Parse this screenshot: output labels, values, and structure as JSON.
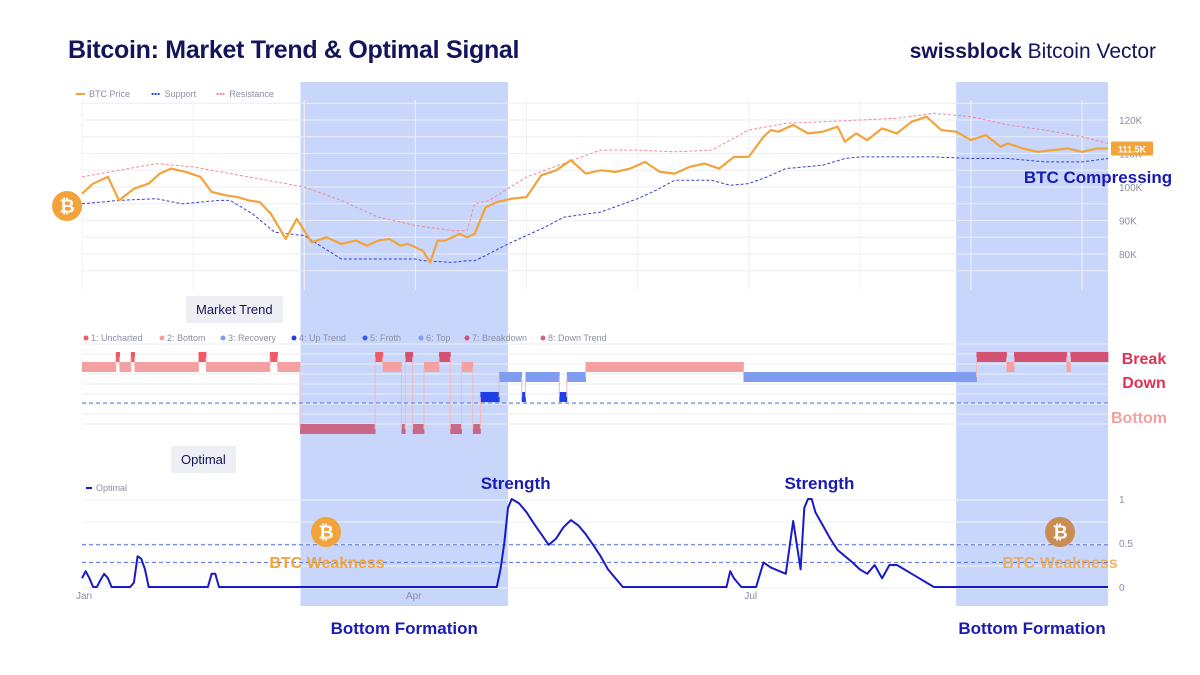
{
  "header": {
    "title": "Bitcoin: Market Trend & Optimal Signal",
    "brand_bold": "swissblock",
    "brand_rest": " Bitcoin Vector"
  },
  "colors": {
    "price": "#f2a33a",
    "support": "#3b43c8",
    "resistance": "#f08c96",
    "highlight": "#c3d1fb",
    "uncharted": "#ef5a66",
    "bottom": "#f5a0a0",
    "recovery": "#7f9cf0",
    "uptrend": "#1f3fe6",
    "breakdown": "#d35272",
    "downtrend": "#c96886",
    "optimal": "#1a1ac8",
    "dark_blue": "#1a1ab4"
  },
  "chart_data": [
    {
      "type": "line",
      "id": "price",
      "legend": [
        "BTC Price",
        "Support",
        "Resistance"
      ],
      "ylim": [
        70000,
        128000
      ],
      "y_ticks": [
        "120K",
        "110K",
        "100K",
        "90K",
        "80K"
      ],
      "y_tick_values": [
        120000,
        110000,
        100000,
        90000,
        80000
      ],
      "last_price_label": "111.5K",
      "series": [
        {
          "name": "BTC Price",
          "x": [
            0,
            3,
            7,
            10,
            14,
            18,
            21,
            24,
            28,
            32,
            35,
            39,
            42,
            45,
            48,
            51,
            55,
            58,
            62,
            66,
            70,
            74,
            77,
            80,
            83,
            86,
            88,
            90,
            92,
            94,
            96,
            98,
            100,
            102,
            104,
            106,
            109,
            112,
            116,
            120,
            124,
            128,
            132,
            136,
            140,
            144,
            148,
            152,
            156,
            160,
            164,
            168,
            172,
            176,
            180,
            184,
            186,
            188,
            192,
            196,
            200,
            204,
            206,
            209,
            212,
            216,
            220,
            224,
            228,
            232,
            236,
            240,
            244,
            248,
            250,
            254,
            258,
            262,
            266,
            270,
            274,
            277
          ],
          "values": [
            98000,
            101000,
            103000,
            96000,
            99500,
            101000,
            104000,
            105500,
            104500,
            103000,
            98500,
            97500,
            97000,
            96000,
            95500,
            92000,
            84500,
            90500,
            83500,
            85000,
            83000,
            84000,
            82500,
            84000,
            84500,
            82500,
            83000,
            82000,
            81000,
            77500,
            84000,
            84000,
            85000,
            86000,
            85000,
            86000,
            94000,
            95500,
            96500,
            97000,
            103500,
            105000,
            108000,
            104000,
            105000,
            104500,
            105500,
            107500,
            104500,
            104000,
            106000,
            107000,
            105500,
            109000,
            109000,
            115000,
            117000,
            116500,
            118500,
            116000,
            116500,
            118000,
            113500,
            116000,
            114000,
            117500,
            116000,
            119500,
            121000,
            117000,
            116500,
            114000,
            115500,
            112000,
            113000,
            111500,
            110500,
            111000,
            111500,
            110500,
            111500,
            111500
          ]
        },
        {
          "name": "Support",
          "x": [
            0,
            10,
            20,
            27,
            37,
            40,
            43,
            46,
            52,
            60,
            70,
            80,
            90,
            92,
            100,
            104,
            106,
            108,
            115,
            125,
            130,
            140,
            150,
            155,
            160,
            170,
            175,
            180,
            185,
            190,
            200,
            206,
            210,
            220,
            230,
            240,
            250,
            260,
            270,
            277
          ],
          "values": [
            95000,
            96000,
            96500,
            95000,
            96000,
            96000,
            94000,
            92000,
            86500,
            85500,
            78500,
            78500,
            78500,
            78000,
            77500,
            78000,
            78000,
            79000,
            83000,
            88000,
            91000,
            92500,
            96500,
            99000,
            102000,
            102000,
            100500,
            101000,
            103000,
            105500,
            106500,
            108500,
            109000,
            109000,
            109000,
            108500,
            108500,
            107500,
            107500,
            108500
          ]
        },
        {
          "name": "Resistance",
          "x": [
            0,
            10,
            20,
            30,
            40,
            50,
            60,
            70,
            80,
            90,
            100,
            104,
            106,
            110,
            120,
            130,
            140,
            150,
            160,
            170,
            180,
            190,
            200,
            210,
            220,
            230,
            240,
            250,
            260,
            270,
            277
          ],
          "values": [
            103000,
            105000,
            107000,
            106000,
            104000,
            102000,
            100000,
            96000,
            91000,
            88500,
            87000,
            87000,
            95000,
            96000,
            103000,
            107000,
            111000,
            111000,
            110500,
            111000,
            117000,
            119000,
            119500,
            120000,
            120500,
            122000,
            121000,
            118500,
            117000,
            115000,
            113000
          ]
        }
      ]
    },
    {
      "type": "heatmap",
      "id": "market_trend",
      "panel_label": "Market Trend",
      "legend": [
        "1: Uncharted",
        "2: Bottom",
        "3: Recovery",
        "4: Up Trend",
        "5: Froth",
        "6: Top",
        "7: Breakdown",
        "8: Down Trend"
      ],
      "annotations": [
        "Break",
        "Down",
        "Bottom"
      ],
      "states": [
        2,
        2,
        2,
        2,
        2,
        2,
        2,
        2,
        2,
        1,
        2,
        2,
        2,
        1,
        2,
        2,
        2,
        2,
        2,
        2,
        2,
        2,
        2,
        2,
        2,
        2,
        2,
        2,
        2,
        2,
        2,
        1,
        1,
        2,
        2,
        2,
        2,
        2,
        2,
        2,
        2,
        2,
        2,
        2,
        2,
        2,
        2,
        2,
        2,
        2,
        1,
        1,
        2,
        2,
        2,
        2,
        2,
        2,
        8,
        8,
        8,
        8,
        8,
        8,
        8,
        8,
        8,
        8,
        8,
        8,
        8,
        8,
        8,
        8,
        8,
        8,
        8,
        8,
        1,
        1,
        2,
        2,
        2,
        2,
        2,
        8,
        7,
        7,
        8,
        8,
        8,
        2,
        2,
        2,
        2,
        7,
        7,
        7,
        8,
        8,
        8,
        2,
        2,
        2,
        8,
        8,
        4,
        4,
        4,
        4,
        4,
        3,
        3,
        3,
        3,
        3,
        3,
        4,
        3,
        3,
        3,
        3,
        3,
        3,
        3,
        3,
        3,
        4,
        4,
        3,
        3,
        3,
        3,
        3,
        2,
        2,
        2,
        2,
        2,
        2,
        2,
        2,
        2,
        2,
        2,
        2,
        2,
        2,
        2,
        2,
        2,
        2,
        2,
        2,
        2,
        2,
        2,
        2,
        2,
        2,
        2,
        2,
        2,
        2,
        2,
        2,
        2,
        2,
        2,
        2,
        2,
        2,
        2,
        2,
        2,
        2,
        3,
        3,
        3,
        3,
        3,
        3,
        3,
        3,
        3,
        3,
        3,
        3,
        3,
        3,
        3,
        3,
        3,
        3,
        3,
        3,
        3,
        3,
        3,
        3,
        3,
        3,
        3,
        3,
        3,
        3,
        3,
        3,
        3,
        3,
        3,
        3,
        3,
        3,
        3,
        3,
        3,
        3,
        3,
        3,
        3,
        3,
        3,
        3,
        3,
        3,
        3,
        3,
        3,
        3,
        3,
        3,
        3,
        3,
        3,
        3,
        3,
        3,
        7,
        7,
        7,
        7,
        7,
        7,
        7,
        7,
        2,
        2,
        7,
        7,
        7,
        7,
        7,
        7,
        7,
        7,
        7,
        7,
        7,
        7,
        7,
        7,
        2,
        7,
        7,
        7,
        7,
        7,
        7,
        7,
        7,
        7,
        7
      ]
    },
    {
      "type": "line",
      "id": "optimal",
      "panel_label": "Optimal",
      "legend": [
        "Optimal"
      ],
      "ylim": [
        0,
        1
      ],
      "y_ticks": [
        "1",
        "0.5",
        "0"
      ],
      "y_tick_values": [
        1,
        0.5,
        0
      ],
      "x_ticks": [
        "Jan",
        "Apr",
        "Jul"
      ],
      "x_tick_positions": [
        0,
        89,
        180
      ],
      "dashed_levels": [
        0.48,
        0.28
      ],
      "series": [
        {
          "name": "Optimal",
          "x": [
            0,
            1,
            2,
            3,
            4,
            5,
            6,
            7,
            8,
            9,
            10,
            13,
            14,
            15,
            16,
            17,
            18,
            19,
            20,
            22,
            34,
            35,
            36,
            37,
            92,
            112,
            113,
            114,
            115,
            116,
            118,
            120,
            122,
            124,
            126,
            128,
            130,
            132,
            134,
            136,
            138,
            140,
            142,
            144,
            146,
            148,
            150,
            152,
            154,
            156,
            158,
            160,
            162,
            165,
            168,
            172,
            174,
            175,
            176,
            177,
            178,
            180,
            182,
            184,
            186,
            190,
            192,
            194,
            195,
            196,
            197,
            198,
            200,
            202,
            204,
            206,
            208,
            210,
            212,
            214,
            216,
            218,
            220,
            222,
            224,
            226,
            228,
            230,
            232,
            234,
            236,
            238,
            240,
            242,
            244,
            277
          ],
          "values": [
            0.1,
            0.18,
            0.1,
            0.0,
            0.0,
            0.08,
            0.15,
            0.1,
            0.0,
            0.0,
            0.0,
            0.0,
            0.05,
            0.35,
            0.32,
            0.2,
            0.0,
            0.0,
            0.0,
            0.0,
            0.0,
            0.15,
            0.15,
            0.0,
            0.0,
            0.0,
            0.2,
            0.5,
            0.9,
            1.0,
            0.95,
            0.85,
            0.72,
            0.6,
            0.48,
            0.55,
            0.68,
            0.76,
            0.7,
            0.6,
            0.48,
            0.35,
            0.2,
            0.1,
            0.0,
            0.0,
            0.0,
            0.0,
            0.0,
            0.0,
            0.0,
            0.0,
            0.0,
            0.0,
            0.0,
            0.0,
            0.0,
            0.18,
            0.1,
            0.05,
            0.0,
            0.0,
            0.0,
            0.28,
            0.22,
            0.15,
            0.75,
            0.2,
            0.9,
            1.0,
            1.0,
            0.85,
            0.7,
            0.55,
            0.42,
            0.35,
            0.28,
            0.2,
            0.15,
            0.25,
            0.1,
            0.25,
            0.25,
            0.2,
            0.15,
            0.1,
            0.05,
            0.0,
            0.0,
            0.0,
            0.0,
            0.0,
            0.0,
            0.0,
            0.0,
            0.0
          ]
        }
      ],
      "annotations": [
        {
          "text": "Strength",
          "x": 116
        },
        {
          "text": "Strength",
          "x": 198
        },
        {
          "text": "BTC Weakness",
          "x": 54
        },
        {
          "text": "BTC Weakness",
          "x": 262
        }
      ]
    }
  ],
  "highlights": [
    {
      "x0": 59,
      "x1": 115,
      "label": "Bottom Formation"
    },
    {
      "x0": 236,
      "x1": 277,
      "label": "Bottom Formation"
    }
  ],
  "callouts": {
    "compressing": "BTC Compressing"
  }
}
